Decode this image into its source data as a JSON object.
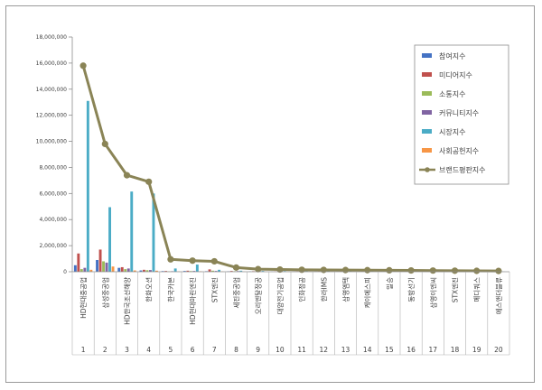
{
  "chart_data": {
    "type": "bar",
    "title": "",
    "xlabel": "",
    "ylabel": "",
    "ylim": [
      0,
      18000000
    ],
    "yticks": [
      "0",
      "2,000,000",
      "4,000,000",
      "6,000,000",
      "8,000,000",
      "10,000,000",
      "12,000,000",
      "14,000,000",
      "16,000,000",
      "18,000,000"
    ],
    "grid": false,
    "legend_position": "top-right",
    "numbers": [
      "1",
      "2",
      "3",
      "4",
      "5",
      "6",
      "7",
      "8",
      "9",
      "10",
      "11",
      "12",
      "13",
      "14",
      "15",
      "16",
      "17",
      "18",
      "19",
      "20"
    ],
    "categories": [
      "HD현대중공업",
      "삼성중공업",
      "HD한국조선해양",
      "한화오션",
      "한국카본",
      "HD현대마린엔진",
      "STX엔진",
      "세진중공업",
      "오리엔탈정공",
      "대양전기공업",
      "인화정공",
      "한라IMS",
      "삼영엠텍",
      "케이에스피",
      "일승",
      "동방선기",
      "삼영이엔씨",
      "STX엔진",
      "메디쿼스",
      "에스앤더블류"
    ],
    "series": [
      {
        "name": "참여지수",
        "color": "#4472c4",
        "values": [
          500000,
          900000,
          300000,
          100000,
          50000,
          60000,
          40000,
          30000,
          20000,
          15000,
          12000,
          10000,
          8000,
          7000,
          6000,
          5000,
          4000,
          3000,
          2000,
          1000
        ]
      },
      {
        "name": "미디어지수",
        "color": "#c0504d",
        "values": [
          1400000,
          1700000,
          350000,
          150000,
          60000,
          80000,
          180000,
          60000,
          40000,
          30000,
          25000,
          20000,
          18000,
          16000,
          14000,
          12000,
          10000,
          8000,
          6000,
          4000
        ]
      },
      {
        "name": "소통지수",
        "color": "#9bbb59",
        "values": [
          200000,
          800000,
          200000,
          120000,
          30000,
          50000,
          80000,
          40000,
          20000,
          15000,
          12000,
          10000,
          9000,
          8000,
          7000,
          6000,
          5000,
          4000,
          3000,
          2000
        ]
      },
      {
        "name": "커뮤니티지수",
        "color": "#8064a2",
        "values": [
          300000,
          700000,
          250000,
          130000,
          40000,
          60000,
          60000,
          50000,
          30000,
          20000,
          15000,
          12000,
          10000,
          9000,
          8000,
          7000,
          6000,
          5000,
          4000,
          3000
        ]
      },
      {
        "name": "시장지수",
        "color": "#4bacc6",
        "values": [
          13100000,
          4950000,
          6150000,
          6000000,
          250000,
          550000,
          150000,
          80000,
          60000,
          50000,
          45000,
          40000,
          35000,
          30000,
          25000,
          20000,
          18000,
          15000,
          12000,
          10000
        ]
      },
      {
        "name": "사회공헌지수",
        "color": "#f79646",
        "values": [
          150000,
          400000,
          100000,
          80000,
          20000,
          30000,
          20000,
          10000,
          8000,
          6000,
          5000,
          4000,
          3000,
          2500,
          2000,
          1500,
          1200,
          1000,
          800,
          600
        ]
      }
    ],
    "line": {
      "name": "브랜드평판지수",
      "color": "#8a8456",
      "values": [
        15800000,
        9800000,
        7400000,
        6900000,
        950000,
        850000,
        800000,
        320000,
        200000,
        170000,
        150000,
        140000,
        130000,
        120000,
        110000,
        100000,
        90000,
        80000,
        70000,
        60000
      ]
    }
  }
}
